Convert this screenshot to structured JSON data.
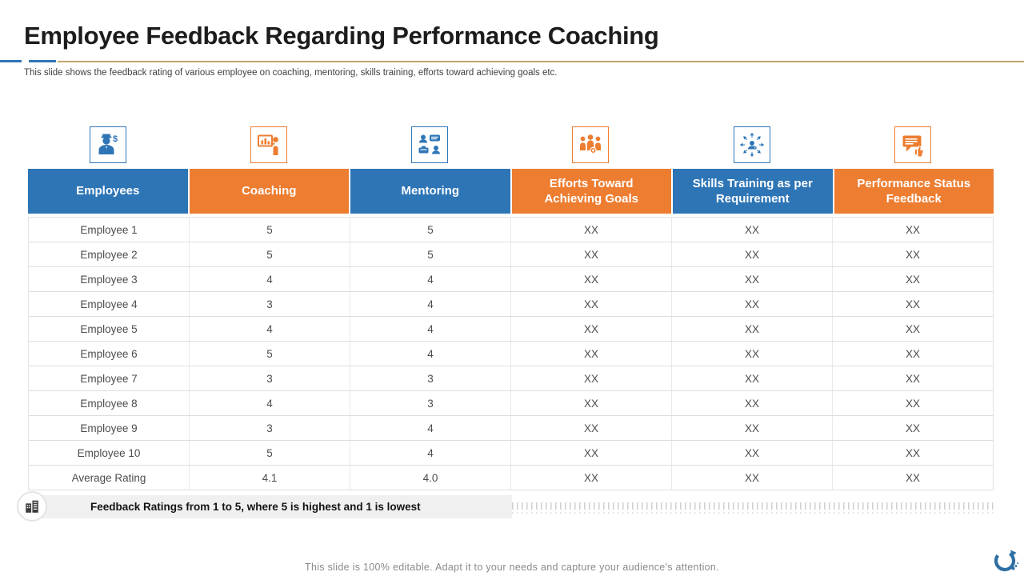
{
  "slide": {
    "title": "Employee Feedback Regarding Performance Coaching",
    "subtitle": "This slide shows the feedback rating of various employee on coaching, mentoring,  skills training, efforts toward achieving goals etc.",
    "footer_note": "Feedback Ratings from 1 to 5, where 5 is highest and 1 is lowest",
    "bottom_text": "This slide is 100% editable. Adapt it to your needs and capture your audience's attention.",
    "footer_icon": "buildings-icon",
    "logo_icon": "circular-arrow-logo-icon"
  },
  "colors": {
    "blue": "#2E75B6",
    "orange": "#ED7D31",
    "tan_line": "#C3A572",
    "title_text": "#1C1C1C",
    "body_text": "#4D4D4D",
    "note_bg": "#F0F0F0"
  },
  "table": {
    "columns": [
      {
        "label": "Employees",
        "color": "blue",
        "icon": "worker-dollar-icon"
      },
      {
        "label": "Coaching",
        "color": "orange",
        "icon": "coaching-presentation-icon"
      },
      {
        "label": "Mentoring",
        "color": "blue",
        "icon": "mentoring-conversation-icon"
      },
      {
        "label": "Efforts Toward Achieving Goals",
        "color": "orange",
        "icon": "team-achievement-icon"
      },
      {
        "label": "Skills Training as per Requirement",
        "color": "blue",
        "icon": "skills-direction-icon"
      },
      {
        "label": "Performance Status Feedback",
        "color": "orange",
        "icon": "feedback-thumbs-up-icon"
      }
    ],
    "rows": [
      [
        "Employee 1",
        "5",
        "5",
        "XX",
        "XX",
        "XX"
      ],
      [
        "Employee 2",
        "5",
        "5",
        "XX",
        "XX",
        "XX"
      ],
      [
        "Employee 3",
        "4",
        "4",
        "XX",
        "XX",
        "XX"
      ],
      [
        "Employee 4",
        "3",
        "4",
        "XX",
        "XX",
        "XX"
      ],
      [
        "Employee 5",
        "4",
        "4",
        "XX",
        "XX",
        "XX"
      ],
      [
        "Employee 6",
        "5",
        "4",
        "XX",
        "XX",
        "XX"
      ],
      [
        "Employee 7",
        "3",
        "3",
        "XX",
        "XX",
        "XX"
      ],
      [
        "Employee 8",
        "4",
        "3",
        "XX",
        "XX",
        "XX"
      ],
      [
        "Employee 9",
        "3",
        "4",
        "XX",
        "XX",
        "XX"
      ],
      [
        "Employee 10",
        "5",
        "4",
        "XX",
        "XX",
        "XX"
      ],
      [
        "Average Rating",
        "4.1",
        "4.0",
        "XX",
        "XX",
        "XX"
      ]
    ]
  }
}
